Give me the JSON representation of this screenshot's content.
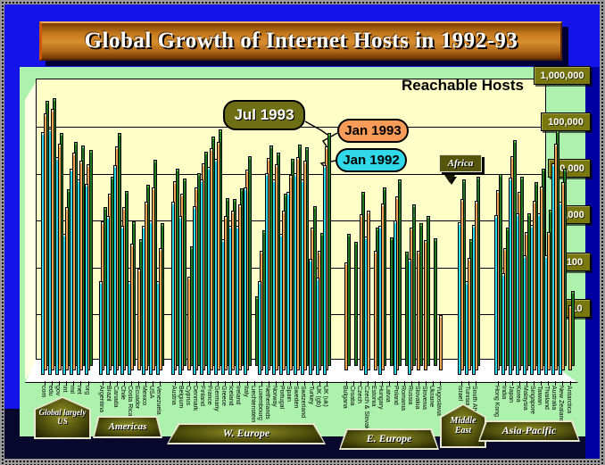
{
  "title": "Global Growth of Internet Hosts in 1992-93",
  "chart_note": "Reachable Hosts",
  "legend": {
    "jul93": {
      "label": "Jul 1993",
      "color": "#6E6E14"
    },
    "jan93": {
      "label": "Jan 1993",
      "color": "#F89A58"
    },
    "jan92": {
      "label": "Jan 1992",
      "color": "#30D8E8"
    }
  },
  "annotations": {
    "africa": "Africa"
  },
  "y_axis_labels": [
    "1,000,000",
    "100,000",
    "10,000",
    "1,000",
    "100",
    "10"
  ],
  "colors": {
    "background_blue": "#1414E8",
    "panel_green": "#ACF2AC",
    "plot_yellow": "#FFFFC8",
    "navy_shadow": "#0000A0",
    "bottom_shadow": "#08082C",
    "olive": "#78780F",
    "bar_jan92": "#2CD8EC",
    "bar_jan93": "#F2A052",
    "bar_jul93": "#1E7A1E"
  },
  "chart_data": {
    "type": "bar",
    "scale": "log",
    "ylim": [
      1,
      1000000
    ],
    "title": "Global Growth of Internet Hosts in 1992-93",
    "ylabel": "Reachable Hosts",
    "series_names": [
      "Jan 1992",
      "Jan 1993",
      "Jul 1993"
    ],
    "groups": [
      {
        "label": "Global largely US",
        "countries": [
          {
            "name": "com",
            "values": [
              150000,
              300000,
              450000
            ]
          },
          {
            "name": "edu",
            "values": [
              180000,
              380000,
              520000
            ]
          },
          {
            "name": "gov",
            "values": [
              45000,
              70000,
              95000
            ]
          },
          {
            "name": "int",
            "values": [
              1000,
              3000,
              6000
            ]
          },
          {
            "name": "mil",
            "values": [
              25000,
              45000,
              60000
            ]
          },
          {
            "name": "net",
            "values": [
              15000,
              30000,
              50000
            ]
          },
          {
            "name": "org",
            "values": [
              12000,
              25000,
              40000
            ]
          }
        ]
      },
      {
        "label": "Americas",
        "countries": [
          {
            "name": "Argentina",
            "values": [
              100,
              1500,
              2500
            ]
          },
          {
            "name": "Brazil",
            "values": [
              2500,
              6000,
              11000
            ]
          },
          {
            "name": "Canada",
            "values": [
              30000,
              60000,
              95000
            ]
          },
          {
            "name": "Chile",
            "values": [
              1500,
              3000,
              5500
            ]
          },
          {
            "name": "Costa Rica",
            "values": [
              100,
              500,
              1200
            ]
          },
          {
            "name": "Ecuador",
            "values": [
              null,
              150,
              500
            ]
          },
          {
            "name": "Mexico",
            "values": [
              1500,
              4000,
              7500
            ]
          },
          {
            "name": "USA",
            "values": [
              2000,
              8000,
              25000
            ]
          },
          {
            "name": "Venezuela",
            "values": [
              100,
              400,
              1100
            ]
          }
        ]
      },
      {
        "label": "W. Europe",
        "countries": [
          {
            "name": "Austria",
            "values": [
              5000,
              11000,
              16000
            ]
          },
          {
            "name": "Belgium",
            "values": [
              2500,
              6000,
              10000
            ]
          },
          {
            "name": "Cyprus",
            "values": [
              null,
              100,
              350
            ]
          },
          {
            "name": "Denmark",
            "values": [
              4000,
              8000,
              13000
            ]
          },
          {
            "name": "Finland",
            "values": [
              15000,
              26000,
              38000
            ]
          },
          {
            "name": "France",
            "values": [
              28000,
              55000,
              80000
            ]
          },
          {
            "name": "Germany",
            "values": [
              40000,
              75000,
              110000
            ]
          },
          {
            "name": "Greece",
            "values": [
              800,
              2000,
              3800
            ]
          },
          {
            "name": "Iceland",
            "values": [
              1500,
              2600,
              3600
            ]
          },
          {
            "name": "Ireland",
            "values": [
              1500,
              3500,
              6200
            ]
          },
          {
            "name": "Italy",
            "values": [
              10000,
              19000,
              30000
            ]
          },
          {
            "name": "Liechtenstein",
            "values": [
              null,
              null,
              30
            ]
          },
          {
            "name": "Luxembourg",
            "values": [
              100,
              350,
              800
            ]
          },
          {
            "name": "Netherlands",
            "values": [
              20000,
              34000,
              50000
            ]
          },
          {
            "name": "Norway",
            "values": [
              15000,
              25000,
              36000
            ]
          },
          {
            "name": "Portugal",
            "values": [
              1000,
              2600,
              4800
            ]
          },
          {
            "name": "Spain",
            "values": [
              8000,
              15000,
              26000
            ]
          },
          {
            "name": "Sweden",
            "values": [
              20000,
              36000,
              52000
            ]
          },
          {
            "name": "Switzerland",
            "values": [
              15000,
              30000,
              46000
            ]
          },
          {
            "name": "Turkey",
            "values": [
              300,
              1100,
              2600
            ]
          },
          {
            "name": "UK (gb)",
            "values": [
              120,
              350,
              700
            ]
          },
          {
            "name": "UK (uk)",
            "values": [
              30000,
              60000,
              92000
            ]
          }
        ]
      },
      {
        "label": "E. Europe",
        "countries": [
          {
            "name": "Bulgaria",
            "values": [
              null,
              200,
              650
            ]
          },
          {
            "name": "Croatia",
            "values": [
              null,
              null,
              450
            ]
          },
          {
            "name": "Czech",
            "values": [
              null,
              2200,
              5200
            ]
          },
          {
            "name": "Czech & Slovak",
            "values": [
              900,
              2600,
              null
            ]
          },
          {
            "name": "Estonia",
            "values": [
              null,
              350,
              900
            ]
          },
          {
            "name": "Hungary",
            "values": [
              1500,
              3600,
              6500
            ]
          },
          {
            "name": "Latvia",
            "values": [
              null,
              null,
              550
            ]
          },
          {
            "name": "Poland",
            "values": [
              2000,
              5200,
              9500
            ]
          },
          {
            "name": "Romania",
            "values": [
              null,
              null,
              280
            ]
          },
          {
            "name": "Russia",
            "values": [
              300,
              1100,
              2800
            ]
          },
          {
            "name": "Slovakia",
            "values": [
              null,
              350,
              1100
            ]
          },
          {
            "name": "Slovenia",
            "values": [
              null,
              600,
              1600
            ]
          },
          {
            "name": "Ukraine",
            "values": [
              null,
              null,
              520
            ]
          },
          {
            "name": "Yugoslavia",
            "values": [
              null,
              15,
              null
            ]
          }
        ]
      },
      {
        "label": "Middle East",
        "countries": [
          {
            "name": "Israel",
            "values": [
              1800,
              4500,
              9500
            ]
          },
          {
            "name": "Tunisia",
            "values": [
              100,
              250,
              500
            ]
          },
          {
            "name": "South Africa",
            "values": [
              1600,
              4200,
              11000
            ]
          }
        ]
      },
      {
        "label": "Asia-Pacific",
        "countries": [
          {
            "name": "Hong Kong",
            "values": [
              2600,
              7000,
              12500
            ]
          },
          {
            "name": "India",
            "values": [
              150,
              400,
              900
            ]
          },
          {
            "name": "Japan",
            "values": [
              16000,
              38000,
              65000
            ]
          },
          {
            "name": "Korea",
            "values": [
              2800,
              6500,
              11000
            ]
          },
          {
            "name": "Malaysia",
            "values": [
              350,
              900,
              1800
            ]
          },
          {
            "name": "Singapore",
            "values": [
              1600,
              4200,
              8500
            ]
          },
          {
            "name": "Taiwan",
            "values": [
              2800,
              8500,
              16000
            ]
          },
          {
            "name": "Thailand",
            "values": [
              350,
              900,
              2200
            ]
          },
          {
            "name": "Australia",
            "values": [
              32000,
              70000,
              105000
            ]
          },
          {
            "name": "New Zealand",
            "values": [
              5000,
              10500,
              16000
            ]
          },
          {
            "name": "Antarctica",
            "values": [
              null,
              25,
              40
            ]
          }
        ]
      }
    ]
  }
}
